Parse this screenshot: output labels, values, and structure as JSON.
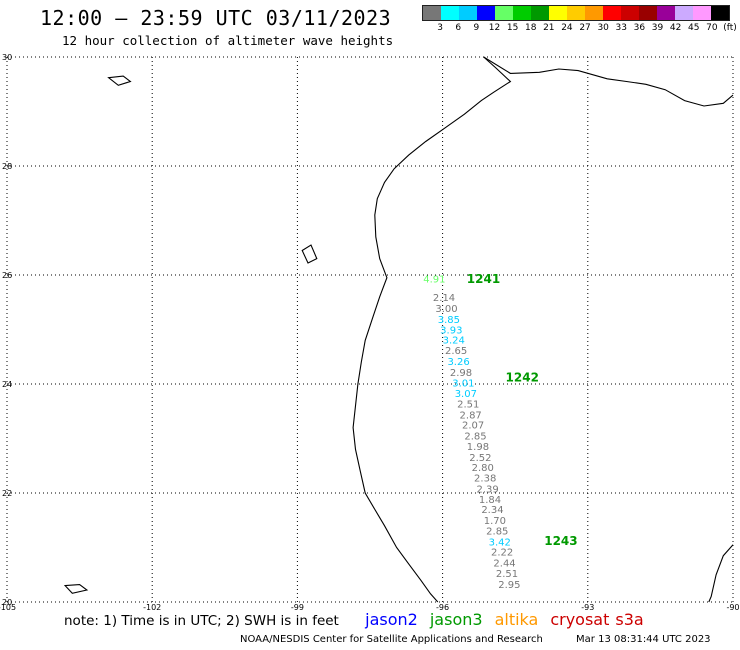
{
  "header": {
    "title": "12:00 – 23:59 UTC 03/11/2023",
    "subtitle": "12 hour collection of altimeter wave heights"
  },
  "legend": {
    "colors": [
      "#777777",
      "#00ffff",
      "#00ccff",
      "#0000ff",
      "#66ff66",
      "#00cc00",
      "#009900",
      "#ffff00",
      "#ffcc00",
      "#ff9900",
      "#ff0000",
      "#cc0000",
      "#990000",
      "#990099",
      "#ccaaff",
      "#ff99ff",
      "#000000"
    ],
    "labels": [
      "3",
      "6",
      "9",
      "12",
      "15",
      "18",
      "21",
      "24",
      "27",
      "30",
      "33",
      "36",
      "39",
      "42",
      "45",
      "70",
      "(ft)"
    ]
  },
  "map": {
    "lat_ticks": [
      "30",
      "28",
      "26",
      "24",
      "22",
      "20"
    ],
    "lon_ticks": [
      "-105",
      "-102",
      "-99",
      "-96",
      "-93",
      "-90"
    ],
    "pass_labels": [
      {
        "text": "1241",
        "lon": -95.5,
        "lat": 25.85
      },
      {
        "text": "1242",
        "lon": -94.7,
        "lat": 24.05
      },
      {
        "text": "1243",
        "lon": -93.9,
        "lat": 21.05
      }
    ],
    "wave_heights": [
      {
        "v": "4.91",
        "lon": -96.4,
        "lat": 25.86,
        "c": "#66ff66"
      },
      {
        "v": "2.14",
        "lon": -96.2,
        "lat": 25.52,
        "c": "#777777"
      },
      {
        "v": "3.00",
        "lon": -96.15,
        "lat": 25.32,
        "c": "#777777"
      },
      {
        "v": "3.85",
        "lon": -96.1,
        "lat": 25.12,
        "c": "#00ccff"
      },
      {
        "v": "3.93",
        "lon": -96.05,
        "lat": 24.93,
        "c": "#00ccff"
      },
      {
        "v": "3.24",
        "lon": -96.0,
        "lat": 24.74,
        "c": "#00ccff"
      },
      {
        "v": "2.65",
        "lon": -95.95,
        "lat": 24.55,
        "c": "#777777"
      },
      {
        "v": "3.26",
        "lon": -95.9,
        "lat": 24.35,
        "c": "#00ccff"
      },
      {
        "v": "2.98",
        "lon": -95.85,
        "lat": 24.15,
        "c": "#777777"
      },
      {
        "v": "3.01",
        "lon": -95.8,
        "lat": 23.95,
        "c": "#00ccff"
      },
      {
        "v": "3.07",
        "lon": -95.75,
        "lat": 23.76,
        "c": "#00ccff"
      },
      {
        "v": "2.51",
        "lon": -95.7,
        "lat": 23.57,
        "c": "#777777"
      },
      {
        "v": "2.87",
        "lon": -95.65,
        "lat": 23.37,
        "c": "#777777"
      },
      {
        "v": "2.07",
        "lon": -95.6,
        "lat": 23.18,
        "c": "#777777"
      },
      {
        "v": "2.85",
        "lon": -95.55,
        "lat": 22.98,
        "c": "#777777"
      },
      {
        "v": "1.98",
        "lon": -95.5,
        "lat": 22.79,
        "c": "#777777"
      },
      {
        "v": "2.52",
        "lon": -95.45,
        "lat": 22.59,
        "c": "#777777"
      },
      {
        "v": "2.80",
        "lon": -95.4,
        "lat": 22.4,
        "c": "#777777"
      },
      {
        "v": "2.38",
        "lon": -95.35,
        "lat": 22.21,
        "c": "#777777"
      },
      {
        "v": "2.39",
        "lon": -95.3,
        "lat": 22.01,
        "c": "#777777"
      },
      {
        "v": "1.84",
        "lon": -95.25,
        "lat": 21.82,
        "c": "#777777"
      },
      {
        "v": "2.34",
        "lon": -95.2,
        "lat": 21.63,
        "c": "#777777"
      },
      {
        "v": "1.70",
        "lon": -95.15,
        "lat": 21.43,
        "c": "#777777"
      },
      {
        "v": "2.85",
        "lon": -95.1,
        "lat": 21.24,
        "c": "#777777"
      },
      {
        "v": "3.42",
        "lon": -95.05,
        "lat": 21.04,
        "c": "#00ccff"
      },
      {
        "v": "2.22",
        "lon": -95.0,
        "lat": 20.85,
        "c": "#777777"
      },
      {
        "v": "2.44",
        "lon": -94.95,
        "lat": 20.65,
        "c": "#777777"
      },
      {
        "v": "2.51",
        "lon": -94.9,
        "lat": 20.46,
        "c": "#777777"
      },
      {
        "v": "2.95",
        "lon": -94.85,
        "lat": 20.26,
        "c": "#777777"
      }
    ],
    "coastline": [
      [
        -95.15,
        30.0
      ],
      [
        -94.9,
        29.8
      ],
      [
        -94.6,
        29.55
      ],
      [
        -94.95,
        29.35
      ],
      [
        -95.2,
        29.2
      ],
      [
        -95.55,
        28.95
      ],
      [
        -95.95,
        28.7
      ],
      [
        -96.35,
        28.45
      ],
      [
        -96.7,
        28.2
      ],
      [
        -97.0,
        27.95
      ],
      [
        -97.2,
        27.7
      ],
      [
        -97.35,
        27.4
      ],
      [
        -97.4,
        27.1
      ],
      [
        -97.38,
        26.7
      ],
      [
        -97.3,
        26.3
      ],
      [
        -97.15,
        25.95
      ],
      [
        -97.3,
        25.6
      ],
      [
        -97.45,
        25.2
      ],
      [
        -97.6,
        24.8
      ],
      [
        -97.68,
        24.4
      ],
      [
        -97.75,
        24.0
      ],
      [
        -97.8,
        23.6
      ],
      [
        -97.85,
        23.2
      ],
      [
        -97.8,
        22.8
      ],
      [
        -97.7,
        22.4
      ],
      [
        -97.6,
        22.0
      ],
      [
        -97.4,
        21.7
      ],
      [
        -97.2,
        21.4
      ],
      [
        -96.95,
        21.0
      ],
      [
        -96.7,
        20.7
      ],
      [
        -96.45,
        20.4
      ],
      [
        -96.25,
        20.15
      ],
      [
        -96.1,
        20.0
      ]
    ],
    "coastline_east": [
      [
        -95.15,
        30.0
      ],
      [
        -94.6,
        29.7
      ],
      [
        -94.0,
        29.72
      ],
      [
        -93.6,
        29.78
      ],
      [
        -93.2,
        29.75
      ],
      [
        -92.6,
        29.6
      ],
      [
        -92.2,
        29.55
      ],
      [
        -91.8,
        29.5
      ],
      [
        -91.4,
        29.4
      ],
      [
        -91.0,
        29.2
      ],
      [
        -90.6,
        29.1
      ],
      [
        -90.2,
        29.15
      ],
      [
        -90.0,
        29.3
      ]
    ],
    "coastline_yucatan": [
      [
        -90.0,
        21.05
      ],
      [
        -90.2,
        20.85
      ],
      [
        -90.35,
        20.5
      ],
      [
        -90.45,
        20.1
      ],
      [
        -90.5,
        20.0
      ]
    ],
    "islands": [
      [
        [
          -102.9,
          29.62
        ],
        [
          -102.6,
          29.65
        ],
        [
          -102.45,
          29.55
        ],
        [
          -102.7,
          29.48
        ],
        [
          -102.9,
          29.62
        ]
      ],
      [
        [
          -103.8,
          20.3
        ],
        [
          -103.5,
          20.32
        ],
        [
          -103.35,
          20.22
        ],
        [
          -103.65,
          20.16
        ],
        [
          -103.8,
          20.3
        ]
      ],
      [
        [
          -98.9,
          26.45
        ],
        [
          -98.72,
          26.55
        ],
        [
          -98.6,
          26.3
        ],
        [
          -98.78,
          26.22
        ],
        [
          -98.9,
          26.45
        ]
      ]
    ]
  },
  "footer": {
    "note": "note:  1) Time is in UTC;  2) SWH is in feet",
    "satellites": [
      {
        "name": "jason2",
        "color": "#0000ff"
      },
      {
        "name": "jason3",
        "color": "#009900"
      },
      {
        "name": "altika",
        "color": "#ff9900"
      },
      {
        "name": "cryosat",
        "color": "#cc0000"
      },
      {
        "name": "s3a",
        "color": "#cc0000"
      }
    ],
    "credit": "NOAA/NESDIS Center for Satellite Applications and Research",
    "timestamp": "Mar 13 08:31:44 UTC 2023"
  }
}
